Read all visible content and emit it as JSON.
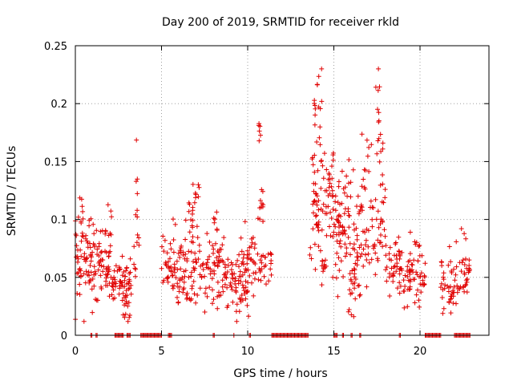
{
  "chart_data": {
    "type": "scatter",
    "title": "Day 200 of 2019, SRMTID for receiver rkld",
    "xlabel": "GPS time / hours",
    "ylabel": "SRMTID / TECUs",
    "xlim": [
      0,
      24
    ],
    "ylim": [
      0,
      0.25
    ],
    "x_ticks": [
      0,
      5,
      10,
      15,
      20
    ],
    "x_tick_labels": [
      "0",
      "5",
      "10",
      "15",
      "20"
    ],
    "y_ticks": [
      0,
      0.05,
      0.1,
      0.15,
      0.2,
      0.25
    ],
    "y_tick_labels": [
      "0",
      "0.05",
      "0.1",
      "0.15",
      "0.2",
      "0.25"
    ],
    "grid": true,
    "marker": "+",
    "color": "#e00000",
    "series": [
      {
        "name": "SRMTID",
        "segments": [
          {
            "x_start": 0.0,
            "x_end": 0.5,
            "mean": 0.065,
            "spread": 0.02,
            "n": 30
          },
          {
            "x_start": 0.2,
            "x_end": 0.5,
            "mean": 0.1,
            "spread": 0.012,
            "n": 6
          },
          {
            "x_start": 0.5,
            "x_end": 1.3,
            "mean": 0.06,
            "spread": 0.018,
            "n": 45
          },
          {
            "x_start": 0.8,
            "x_end": 1.2,
            "mean": 0.085,
            "spread": 0.01,
            "n": 6
          },
          {
            "x_start": 1.3,
            "x_end": 2.1,
            "mean": 0.06,
            "spread": 0.015,
            "n": 45
          },
          {
            "x_start": 1.6,
            "x_end": 2.1,
            "mean": 0.09,
            "spread": 0.012,
            "n": 8
          },
          {
            "x_start": 2.1,
            "x_end": 3.3,
            "mean": 0.045,
            "spread": 0.012,
            "n": 60
          },
          {
            "x_start": 2.8,
            "x_end": 3.2,
            "mean": 0.03,
            "spread": 0.008,
            "n": 10
          },
          {
            "x_start": 3.4,
            "x_end": 3.7,
            "mean": 0.07,
            "spread": 0.012,
            "n": 8
          },
          {
            "x_start": 3.5,
            "x_end": 3.6,
            "mean": 0.13,
            "spread": 0.02,
            "n": 8
          },
          {
            "x_start": 5.0,
            "x_end": 5.6,
            "mean": 0.06,
            "spread": 0.012,
            "n": 25
          },
          {
            "x_start": 5.6,
            "x_end": 7.2,
            "mean": 0.06,
            "spread": 0.02,
            "n": 80
          },
          {
            "x_start": 6.3,
            "x_end": 7.1,
            "mean": 0.1,
            "spread": 0.015,
            "n": 15
          },
          {
            "x_start": 6.8,
            "x_end": 7.2,
            "mean": 0.122,
            "spread": 0.006,
            "n": 6
          },
          {
            "x_start": 7.2,
            "x_end": 8.8,
            "mean": 0.055,
            "spread": 0.018,
            "n": 70
          },
          {
            "x_start": 7.8,
            "x_end": 8.5,
            "mean": 0.09,
            "spread": 0.015,
            "n": 10
          },
          {
            "x_start": 8.8,
            "x_end": 10.1,
            "mean": 0.045,
            "spread": 0.015,
            "n": 60
          },
          {
            "x_start": 9.3,
            "x_end": 10.1,
            "mean": 0.07,
            "spread": 0.015,
            "n": 15
          },
          {
            "x_start": 10.1,
            "x_end": 11.4,
            "mean": 0.065,
            "spread": 0.015,
            "n": 45
          },
          {
            "x_start": 10.6,
            "x_end": 10.9,
            "mean": 0.11,
            "spread": 0.015,
            "n": 12
          },
          {
            "x_start": 10.6,
            "x_end": 10.8,
            "mean": 0.175,
            "spread": 0.012,
            "n": 6
          },
          {
            "x_start": 13.6,
            "x_end": 14.1,
            "mean": 0.11,
            "spread": 0.025,
            "n": 30
          },
          {
            "x_start": 13.8,
            "x_end": 14.3,
            "mean": 0.195,
            "spread": 0.015,
            "n": 15
          },
          {
            "x_start": 14.1,
            "x_end": 15.0,
            "mean": 0.12,
            "spread": 0.03,
            "n": 55
          },
          {
            "x_start": 14.3,
            "x_end": 14.6,
            "mean": 0.06,
            "spread": 0.01,
            "n": 8
          },
          {
            "x_start": 15.0,
            "x_end": 16.2,
            "mean": 0.09,
            "spread": 0.025,
            "n": 60
          },
          {
            "x_start": 15.2,
            "x_end": 16.0,
            "mean": 0.13,
            "spread": 0.02,
            "n": 12
          },
          {
            "x_start": 15.5,
            "x_end": 16.6,
            "mean": 0.05,
            "spread": 0.015,
            "n": 20
          },
          {
            "x_start": 16.2,
            "x_end": 17.2,
            "mean": 0.085,
            "spread": 0.025,
            "n": 45
          },
          {
            "x_start": 16.6,
            "x_end": 17.2,
            "mean": 0.15,
            "spread": 0.015,
            "n": 10
          },
          {
            "x_start": 17.2,
            "x_end": 18.0,
            "mean": 0.09,
            "spread": 0.02,
            "n": 30
          },
          {
            "x_start": 17.4,
            "x_end": 17.8,
            "mean": 0.2,
            "spread": 0.02,
            "n": 12
          },
          {
            "x_start": 17.6,
            "x_end": 17.9,
            "mean": 0.15,
            "spread": 0.02,
            "n": 8
          },
          {
            "x_start": 18.0,
            "x_end": 19.0,
            "mean": 0.06,
            "spread": 0.015,
            "n": 45
          },
          {
            "x_start": 19.0,
            "x_end": 20.3,
            "mean": 0.045,
            "spread": 0.012,
            "n": 55
          },
          {
            "x_start": 19.3,
            "x_end": 20.0,
            "mean": 0.075,
            "spread": 0.008,
            "n": 8
          },
          {
            "x_start": 21.2,
            "x_end": 22.2,
            "mean": 0.045,
            "spread": 0.012,
            "n": 45
          },
          {
            "x_start": 22.2,
            "x_end": 22.9,
            "mean": 0.05,
            "spread": 0.012,
            "n": 28
          },
          {
            "x_start": 22.4,
            "x_end": 22.9,
            "mean": 0.085,
            "spread": 0.003,
            "n": 3
          }
        ]
      }
    ],
    "zero_runs": [
      [
        0.9,
        1.0
      ],
      [
        1.2,
        1.3
      ],
      [
        2.3,
        2.8
      ],
      [
        3.0,
        3.2
      ],
      [
        3.8,
        5.0
      ],
      [
        5.4,
        5.6
      ],
      [
        8.0,
        8.1
      ],
      [
        9.2,
        9.2
      ],
      [
        10.1,
        10.2
      ],
      [
        11.4,
        13.5
      ],
      [
        15.0,
        15.2
      ],
      [
        15.5,
        15.6
      ],
      [
        16.0,
        16.1
      ],
      [
        16.5,
        16.6
      ],
      [
        18.8,
        18.9
      ],
      [
        20.3,
        21.2
      ],
      [
        22.0,
        22.9
      ]
    ]
  }
}
